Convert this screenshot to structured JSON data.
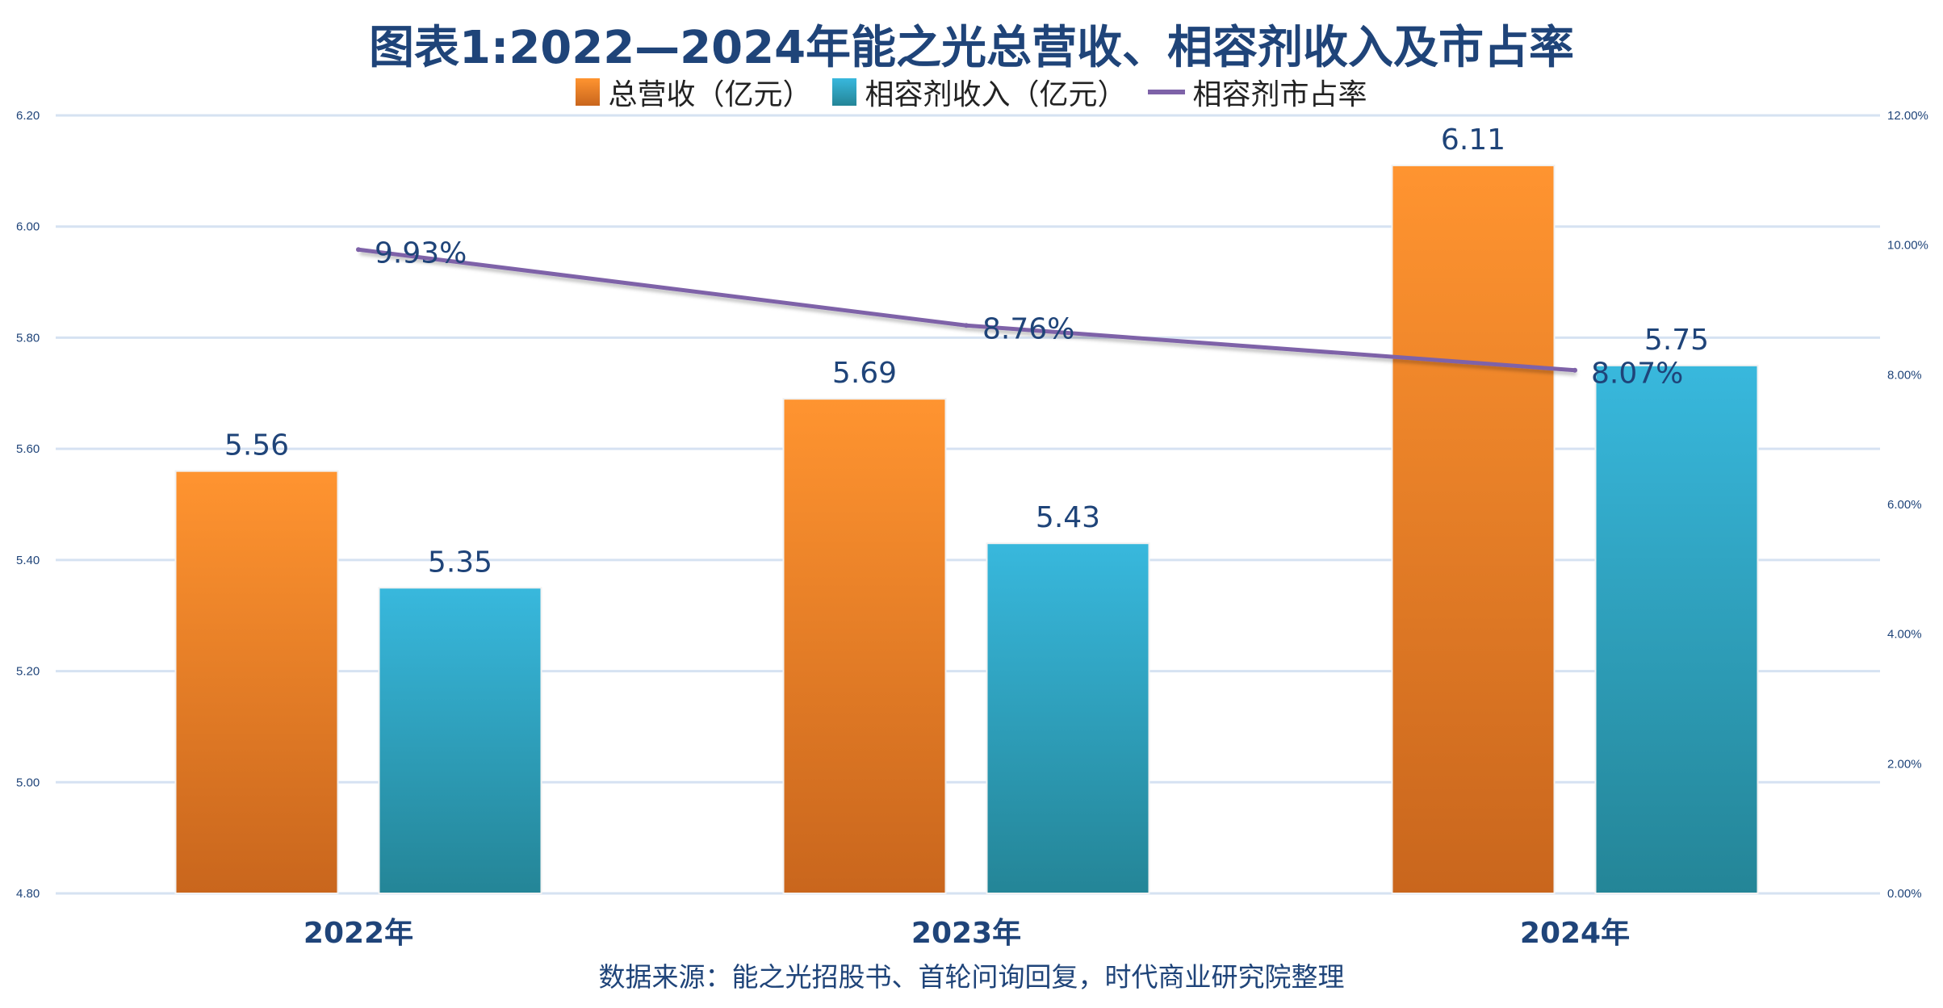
{
  "chart_data": {
    "type": "bar",
    "title": "图表1:2022—2024年能之光总营收、相容剂收入及市占率",
    "categories": [
      "2022年",
      "2023年",
      "2024年"
    ],
    "series": [
      {
        "name": "总营收（亿元）",
        "kind": "bar",
        "axis": "left",
        "values": [
          5.56,
          5.69,
          6.11
        ],
        "labels": [
          "5.56",
          "5.69",
          "6.11"
        ],
        "color": "#f28a2a"
      },
      {
        "name": "相容剂收入（亿元）",
        "kind": "bar",
        "axis": "left",
        "values": [
          5.35,
          5.43,
          5.75
        ],
        "labels": [
          "5.35",
          "5.43",
          "5.75"
        ],
        "color": "#2ea5c6"
      },
      {
        "name": "相容剂市占率",
        "kind": "line",
        "axis": "right",
        "values": [
          9.93,
          8.76,
          8.07
        ],
        "labels": [
          "9.93%",
          "8.76%",
          "8.07%"
        ],
        "color": "#7e62a8"
      }
    ],
    "ylim": [
      4.8,
      6.2
    ],
    "y_ticks": [
      "4.80",
      "5.00",
      "5.20",
      "5.40",
      "5.60",
      "5.80",
      "6.00",
      "6.20"
    ],
    "y2lim": [
      0,
      12
    ],
    "y2_ticks": [
      "0.00%",
      "2.00%",
      "4.00%",
      "6.00%",
      "8.00%",
      "10.00%",
      "12.00%"
    ],
    "grid": true,
    "legend_position": "top",
    "source": "数据来源：能之光招股书、首轮问询回复，时代商业研究院整理"
  }
}
